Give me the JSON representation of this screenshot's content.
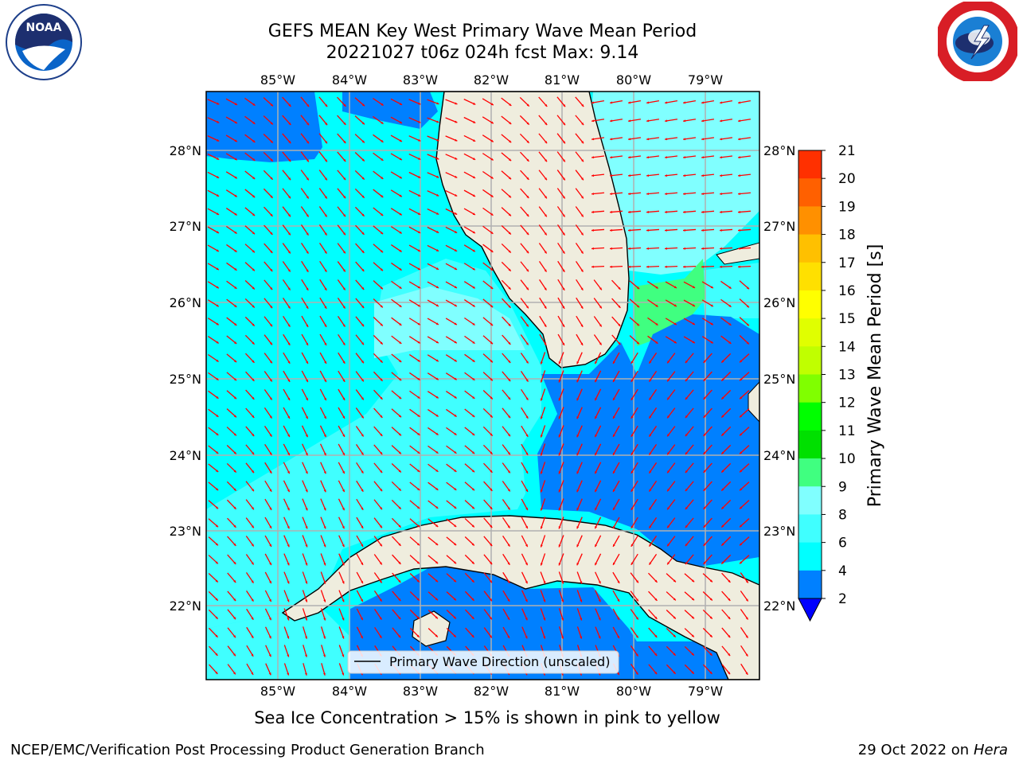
{
  "title_line1": "GEFS MEAN Key West Primary Wave Mean Period",
  "title_line2": "20221027 t06z 024h fcst   Max: 9.14",
  "logos": {
    "left": "NOAA",
    "right": "National Weather Service"
  },
  "colorbar": {
    "label": "Primary Wave Mean Period [s]",
    "ticks": [
      "2",
      "4",
      "6",
      "8",
      "9",
      "10",
      "11",
      "12",
      "13",
      "14",
      "15",
      "16",
      "17",
      "18",
      "19",
      "20",
      "21"
    ],
    "colors": [
      "#0080ff",
      "#00ffff",
      "#40ffff",
      "#80ffff",
      "#40ff80",
      "#00e000",
      "#00ff00",
      "#80ff00",
      "#c0ff00",
      "#e0ff00",
      "#ffff00",
      "#ffe000",
      "#ffc000",
      "#ff9000",
      "#ff6000",
      "#ff3000",
      "#ff0000"
    ],
    "extend_color": "#0000ff"
  },
  "axes": {
    "lon_labels": [
      "85°W",
      "84°W",
      "83°W",
      "82°W",
      "81°W",
      "80°W",
      "79°W"
    ],
    "lat_labels": [
      "28°N",
      "27°N",
      "26°N",
      "25°N",
      "24°N",
      "23°N",
      "22°N"
    ]
  },
  "legend": {
    "label": "Primary Wave Direction (unscaled)"
  },
  "note": "Sea Ice Concentration > 15% is shown in pink to yellow",
  "footer": {
    "left": "NCEP/EMC/Verification Post Processing Product Generation Branch",
    "date": "29 Oct 2022 on ",
    "machine": "Hera"
  },
  "colors": {
    "land": "#efedde",
    "arrow": "#ff0000",
    "grid": "#b0b0b0",
    "deep": "#0080ff",
    "cyan": "#00ffff",
    "light_cyan": "#40ffff",
    "pale_cyan": "#80ffff",
    "green": "#40ff80"
  }
}
